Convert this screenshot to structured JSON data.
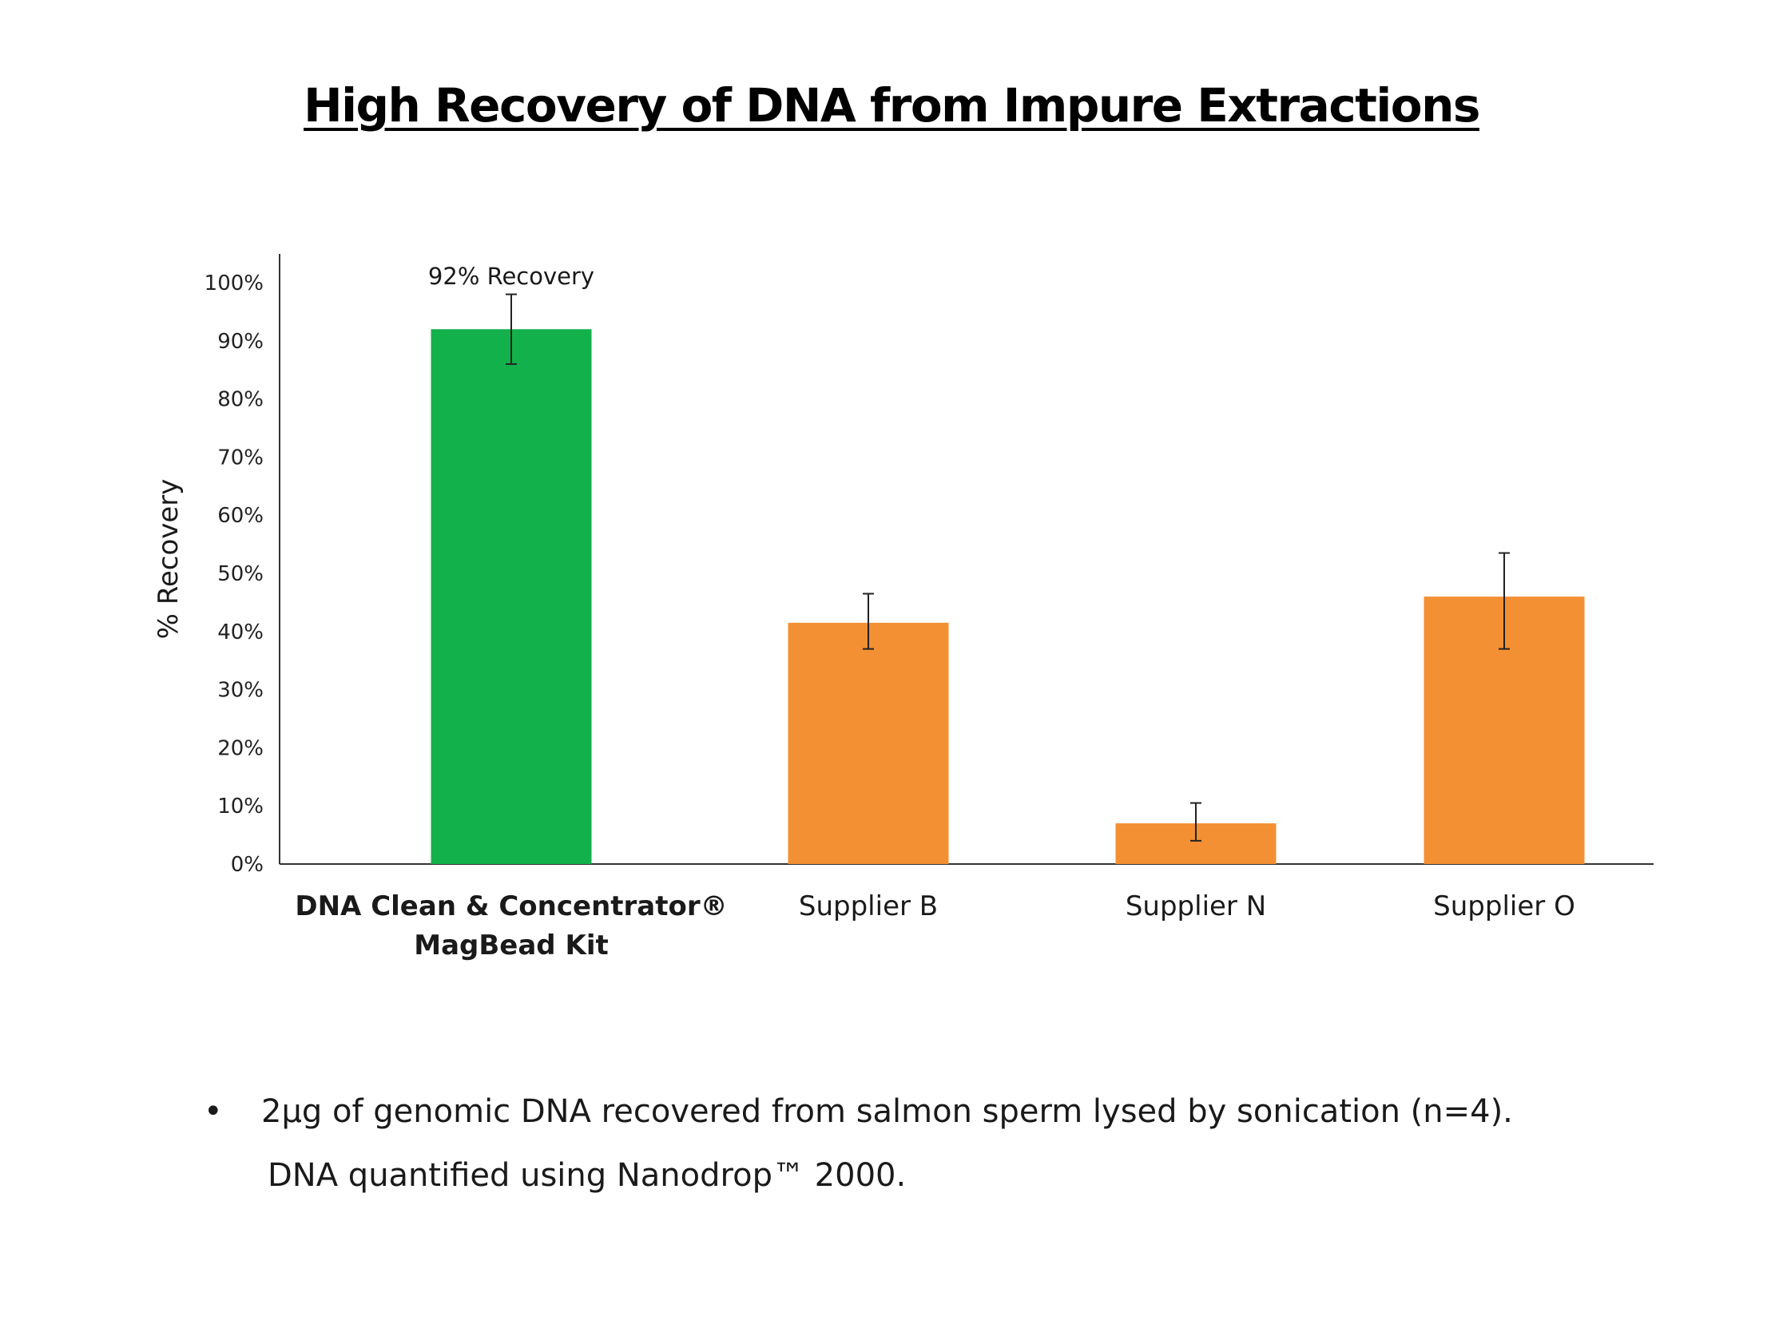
{
  "title": "High Recovery of DNA from Impure Extractions",
  "chart_data": {
    "type": "bar",
    "ylabel": "% Recovery",
    "xlabel": "",
    "ylim": [
      0,
      105
    ],
    "yticks": [
      "0%",
      "10%",
      "20%",
      "30%",
      "40%",
      "50%",
      "60%",
      "70%",
      "80%",
      "90%",
      "100%"
    ],
    "categories": [
      [
        "DNA Clean & Concentrator®",
        "MagBead Kit"
      ],
      [
        "Supplier B"
      ],
      [
        "Supplier N"
      ],
      [
        "Supplier O"
      ]
    ],
    "values": [
      92,
      41.5,
      7,
      46
    ],
    "error_low": [
      86,
      37,
      4,
      37
    ],
    "error_high": [
      98,
      46.5,
      10.5,
      53.5
    ],
    "colors": [
      "#13b14b",
      "#f39033",
      "#f39033",
      "#f39033"
    ],
    "annotations": [
      {
        "category_index": 0,
        "text": "92% Recovery"
      }
    ],
    "grid": false,
    "legend": "none"
  },
  "notes": {
    "bullet": "•",
    "line1": "2µg of genomic DNA recovered from salmon sperm lysed by sonication (n=4).",
    "line2": "DNA quantified using Nanodrop™ 2000."
  }
}
